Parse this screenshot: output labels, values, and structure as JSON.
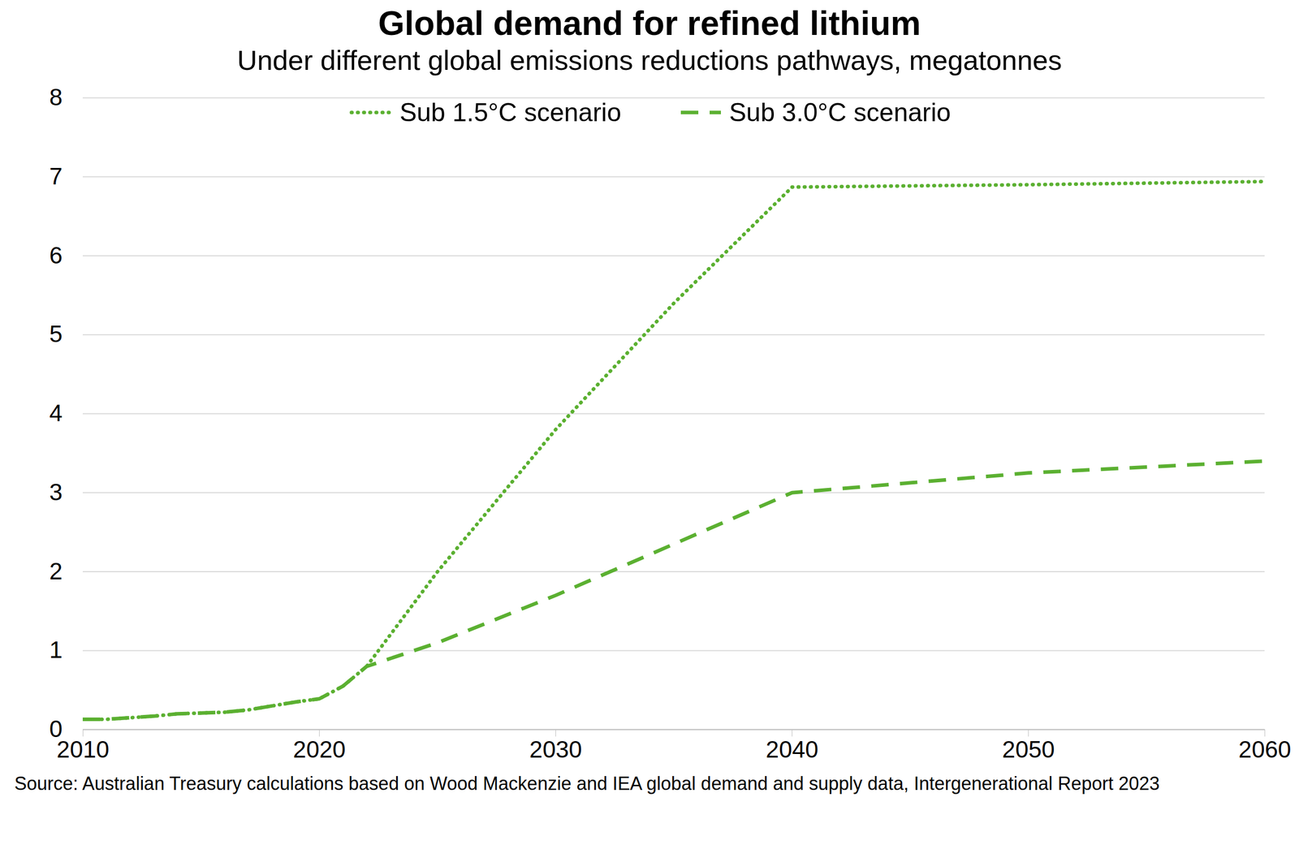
{
  "chart_data": {
    "type": "line",
    "title": "Global demand for refined lithium",
    "subtitle": "Under different global emissions reductions pathways, megatonnes",
    "caption": "Source: Australian Treasury  calculations based on Wood Mackenzie and IEA global demand and supply data, Intergenerational Report 2023",
    "x": [
      2010,
      2011,
      2012,
      2013,
      2014,
      2015,
      2016,
      2017,
      2018,
      2019,
      2020,
      2021,
      2022,
      2025,
      2030,
      2035,
      2040,
      2050,
      2060
    ],
    "series": [
      {
        "name": "Sub 1.5°C scenario",
        "color": "#5bb031",
        "line_style": "dotted",
        "values": [
          0.13,
          0.13,
          0.15,
          0.17,
          0.2,
          0.21,
          0.22,
          0.25,
          0.3,
          0.35,
          0.39,
          0.55,
          0.8,
          2.0,
          3.8,
          5.4,
          6.87,
          6.9,
          6.94
        ]
      },
      {
        "name": "Sub 3.0°C scenario",
        "color": "#5bb031",
        "line_style": "dashed",
        "values": [
          0.13,
          0.13,
          0.15,
          0.17,
          0.2,
          0.21,
          0.22,
          0.25,
          0.3,
          0.35,
          0.39,
          0.55,
          0.8,
          1.1,
          1.7,
          2.35,
          3.0,
          3.25,
          3.4
        ]
      }
    ],
    "xlim": [
      2010,
      2060
    ],
    "xticks": [
      2010,
      2020,
      2030,
      2040,
      2050,
      2060
    ],
    "ylim": [
      0,
      8
    ],
    "yticks": [
      0,
      1,
      2,
      3,
      4,
      5,
      6,
      7,
      8
    ],
    "grid": true,
    "legend": "top"
  }
}
